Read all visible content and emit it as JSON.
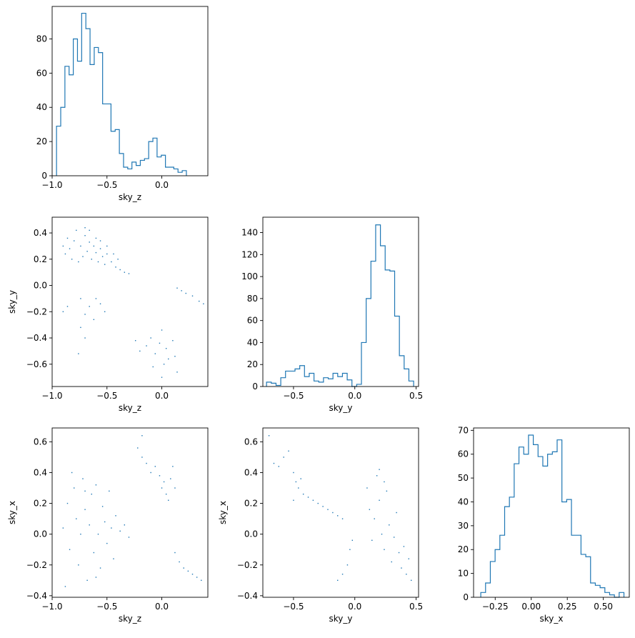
{
  "colors": {
    "series": "#1f77b4",
    "axis": "#000000",
    "background": "#ffffff"
  },
  "chart_data": [
    {
      "id": "hist_sky_z",
      "type": "histogram",
      "xlabel": "sky_z",
      "ylabel": "",
      "xlim": [
        -1.0,
        0.42
      ],
      "ylim": [
        0,
        99
      ],
      "xticks": [
        -1.0,
        -0.5,
        0.0
      ],
      "xtick_labels": [
        "−1.0",
        "−0.5",
        "0.0"
      ],
      "yticks": [
        0,
        20,
        40,
        60,
        80
      ],
      "ytick_labels": [
        "0",
        "20",
        "40",
        "60",
        "80"
      ],
      "bin_start": -0.96,
      "bin_width": 0.0382,
      "counts": [
        29,
        40,
        64,
        59,
        80,
        67,
        95,
        86,
        65,
        75,
        72,
        42,
        42,
        26,
        27,
        13,
        5,
        4,
        8,
        6,
        9,
        10,
        20,
        22,
        11,
        12,
        5,
        5,
        4,
        2,
        3
      ]
    },
    {
      "id": "scatter_z_y",
      "type": "scatter",
      "xlabel": "sky_z",
      "ylabel": "sky_y",
      "xlim": [
        -1.0,
        0.42
      ],
      "ylim": [
        -0.77,
        0.52
      ],
      "xticks": [
        -1.0,
        -0.5,
        0.0
      ],
      "xtick_labels": [
        "−1.0",
        "−0.5",
        "0.0"
      ],
      "yticks": [
        0.4,
        0.2,
        0.0,
        -0.2,
        -0.4,
        -0.6
      ],
      "ytick_labels": [
        "0.4",
        "0.2",
        "0.0",
        "−0.2",
        "−0.4",
        "−0.6"
      ],
      "points": [
        [
          -0.9,
          0.3
        ],
        [
          -0.86,
          0.36
        ],
        [
          -0.84,
          0.28
        ],
        [
          -0.8,
          0.34
        ],
        [
          -0.78,
          0.42
        ],
        [
          -0.74,
          0.3
        ],
        [
          -0.72,
          0.22
        ],
        [
          -0.7,
          0.38
        ],
        [
          -0.68,
          0.26
        ],
        [
          -0.66,
          0.33
        ],
        [
          -0.64,
          0.2
        ],
        [
          -0.62,
          0.3
        ],
        [
          -0.6,
          0.25
        ],
        [
          -0.58,
          0.18
        ],
        [
          -0.56,
          0.28
        ],
        [
          -0.54,
          0.22
        ],
        [
          -0.52,
          0.16
        ],
        [
          -0.5,
          0.24
        ],
        [
          -0.46,
          0.18
        ],
        [
          -0.42,
          0.14
        ],
        [
          -0.38,
          0.12
        ],
        [
          -0.34,
          0.1
        ],
        [
          -0.3,
          0.09
        ],
        [
          -0.88,
          0.24
        ],
        [
          -0.82,
          0.2
        ],
        [
          -0.76,
          0.18
        ],
        [
          -0.7,
          0.44
        ],
        [
          -0.66,
          0.42
        ],
        [
          -0.6,
          0.36
        ],
        [
          -0.56,
          0.34
        ],
        [
          -0.5,
          0.3
        ],
        [
          -0.44,
          0.24
        ],
        [
          -0.4,
          0.2
        ],
        [
          -0.9,
          -0.2
        ],
        [
          -0.86,
          -0.16
        ],
        [
          -0.74,
          -0.1
        ],
        [
          -0.7,
          -0.22
        ],
        [
          -0.66,
          -0.16
        ],
        [
          -0.6,
          -0.1
        ],
        [
          -0.56,
          -0.14
        ],
        [
          -0.52,
          -0.2
        ],
        [
          -0.62,
          -0.26
        ],
        [
          -0.74,
          -0.32
        ],
        [
          -0.7,
          -0.4
        ],
        [
          -0.76,
          -0.52
        ],
        [
          -0.24,
          -0.42
        ],
        [
          -0.2,
          -0.5
        ],
        [
          -0.14,
          -0.46
        ],
        [
          -0.1,
          -0.4
        ],
        [
          -0.06,
          -0.52
        ],
        [
          -0.02,
          -0.44
        ],
        [
          0.0,
          -0.34
        ],
        [
          0.02,
          -0.6
        ],
        [
          0.04,
          -0.48
        ],
        [
          0.06,
          -0.56
        ],
        [
          0.1,
          -0.42
        ],
        [
          0.12,
          -0.54
        ],
        [
          0.14,
          -0.66
        ],
        [
          -0.08,
          -0.62
        ],
        [
          0.0,
          -0.7
        ],
        [
          0.14,
          -0.02
        ],
        [
          0.18,
          -0.04
        ],
        [
          0.22,
          -0.06
        ],
        [
          0.28,
          -0.08
        ],
        [
          0.34,
          -0.12
        ],
        [
          0.38,
          -0.14
        ]
      ]
    },
    {
      "id": "hist_sky_y",
      "type": "histogram",
      "xlabel": "sky_y",
      "ylabel": "",
      "xlim": [
        -0.75,
        0.52
      ],
      "ylim": [
        0,
        154
      ],
      "xticks": [
        -0.5,
        0.0,
        0.5
      ],
      "xtick_labels": [
        "−0.5",
        "0.0",
        "0.5"
      ],
      "yticks": [
        0,
        20,
        40,
        60,
        80,
        100,
        120,
        140
      ],
      "ytick_labels": [
        "0",
        "20",
        "40",
        "60",
        "80",
        "100",
        "120",
        "140"
      ],
      "bin_start": -0.72,
      "bin_width": 0.0387,
      "counts": [
        4,
        3,
        1,
        8,
        14,
        14,
        16,
        19,
        9,
        12,
        5,
        4,
        8,
        7,
        12,
        9,
        12,
        6,
        0,
        2,
        40,
        80,
        114,
        147,
        128,
        106,
        105,
        64,
        28,
        16,
        5
      ]
    },
    {
      "id": "scatter_z_x",
      "type": "scatter",
      "xlabel": "sky_z",
      "ylabel": "sky_x",
      "xlim": [
        -1.0,
        0.42
      ],
      "ylim": [
        -0.41,
        0.69
      ],
      "xticks": [
        -1.0,
        -0.5,
        0.0
      ],
      "xtick_labels": [
        "−1.0",
        "−0.5",
        "0.0"
      ],
      "yticks": [
        0.6,
        0.4,
        0.2,
        0.0,
        -0.2,
        -0.4
      ],
      "ytick_labels": [
        "0.6",
        "0.4",
        "0.2",
        "0.0",
        "−0.2",
        "−0.4"
      ],
      "points": [
        [
          -0.9,
          0.04
        ],
        [
          -0.86,
          0.2
        ],
        [
          -0.84,
          -0.1
        ],
        [
          -0.8,
          0.3
        ],
        [
          -0.78,
          0.1
        ],
        [
          -0.76,
          -0.2
        ],
        [
          -0.74,
          0.0
        ],
        [
          -0.72,
          0.36
        ],
        [
          -0.7,
          0.16
        ],
        [
          -0.68,
          -0.3
        ],
        [
          -0.66,
          0.06
        ],
        [
          -0.64,
          0.26
        ],
        [
          -0.62,
          -0.12
        ],
        [
          -0.6,
          0.32
        ],
        [
          -0.58,
          0.0
        ],
        [
          -0.56,
          -0.22
        ],
        [
          -0.54,
          0.18
        ],
        [
          -0.52,
          0.08
        ],
        [
          -0.5,
          -0.06
        ],
        [
          -0.48,
          0.28
        ],
        [
          -0.46,
          0.04
        ],
        [
          -0.44,
          -0.16
        ],
        [
          -0.42,
          0.12
        ],
        [
          -0.38,
          0.02
        ],
        [
          -0.34,
          0.06
        ],
        [
          -0.3,
          -0.02
        ],
        [
          -0.82,
          0.4
        ],
        [
          -0.7,
          0.28
        ],
        [
          -0.6,
          -0.28
        ],
        [
          -0.88,
          -0.34
        ],
        [
          -0.22,
          0.56
        ],
        [
          -0.18,
          0.5
        ],
        [
          -0.14,
          0.46
        ],
        [
          -0.1,
          0.4
        ],
        [
          -0.06,
          0.44
        ],
        [
          -0.02,
          0.38
        ],
        [
          0.0,
          0.3
        ],
        [
          0.02,
          0.34
        ],
        [
          0.04,
          0.26
        ],
        [
          0.06,
          0.22
        ],
        [
          0.08,
          0.36
        ],
        [
          0.1,
          0.44
        ],
        [
          0.12,
          0.3
        ],
        [
          -0.18,
          0.64
        ],
        [
          0.12,
          -0.12
        ],
        [
          0.16,
          -0.18
        ],
        [
          0.2,
          -0.22
        ],
        [
          0.24,
          -0.24
        ],
        [
          0.28,
          -0.26
        ],
        [
          0.32,
          -0.28
        ],
        [
          0.36,
          -0.3
        ]
      ]
    },
    {
      "id": "scatter_y_x",
      "type": "scatter",
      "xlabel": "sky_y",
      "ylabel": "sky_x",
      "xlim": [
        -0.75,
        0.52
      ],
      "ylim": [
        -0.41,
        0.69
      ],
      "xticks": [
        -0.5,
        0.0,
        0.5
      ],
      "xtick_labels": [
        "−0.5",
        "0.0",
        "0.5"
      ],
      "yticks": [
        0.6,
        0.4,
        0.2,
        0.0,
        -0.2,
        -0.4
      ],
      "ytick_labels": [
        "0.6",
        "0.4",
        "0.2",
        "0.0",
        "−0.2",
        "−0.4"
      ],
      "points": [
        [
          -0.7,
          0.64
        ],
        [
          -0.66,
          0.46
        ],
        [
          -0.62,
          0.44
        ],
        [
          -0.58,
          0.5
        ],
        [
          -0.54,
          0.54
        ],
        [
          -0.5,
          0.4
        ],
        [
          -0.48,
          0.34
        ],
        [
          -0.46,
          0.3
        ],
        [
          -0.44,
          0.36
        ],
        [
          -0.42,
          0.26
        ],
        [
          -0.38,
          0.24
        ],
        [
          -0.34,
          0.22
        ],
        [
          -0.3,
          0.2
        ],
        [
          -0.26,
          0.18
        ],
        [
          -0.22,
          0.16
        ],
        [
          -0.18,
          0.14
        ],
        [
          -0.14,
          0.12
        ],
        [
          -0.1,
          0.1
        ],
        [
          -0.5,
          0.22
        ],
        [
          -0.14,
          -0.3
        ],
        [
          -0.1,
          -0.26
        ],
        [
          -0.06,
          -0.2
        ],
        [
          -0.04,
          -0.1
        ],
        [
          -0.02,
          -0.04
        ],
        [
          0.1,
          0.3
        ],
        [
          0.12,
          0.16
        ],
        [
          0.14,
          -0.04
        ],
        [
          0.16,
          0.1
        ],
        [
          0.18,
          0.38
        ],
        [
          0.2,
          0.22
        ],
        [
          0.22,
          0.0
        ],
        [
          0.24,
          -0.1
        ],
        [
          0.26,
          0.28
        ],
        [
          0.28,
          0.06
        ],
        [
          0.3,
          -0.18
        ],
        [
          0.32,
          -0.02
        ],
        [
          0.34,
          0.14
        ],
        [
          0.36,
          -0.12
        ],
        [
          0.38,
          -0.22
        ],
        [
          0.4,
          -0.08
        ],
        [
          0.42,
          -0.26
        ],
        [
          0.44,
          -0.16
        ],
        [
          0.2,
          0.42
        ],
        [
          0.24,
          0.34
        ],
        [
          0.46,
          -0.3
        ]
      ]
    },
    {
      "id": "hist_sky_x",
      "type": "histogram",
      "xlabel": "sky_x",
      "ylabel": "",
      "xlim": [
        -0.4,
        0.68
      ],
      "ylim": [
        0,
        71
      ],
      "xticks": [
        -0.25,
        0.0,
        0.25,
        0.5
      ],
      "xtick_labels": [
        "−0.25",
        "0.00",
        "0.25",
        "0.50"
      ],
      "yticks": [
        0,
        10,
        20,
        30,
        40,
        50,
        60,
        70
      ],
      "ytick_labels": [
        "0",
        "10",
        "20",
        "30",
        "40",
        "50",
        "60",
        "70"
      ],
      "bin_start": -0.35,
      "bin_width": 0.0331,
      "counts": [
        2,
        6,
        15,
        20,
        26,
        38,
        42,
        56,
        63,
        60,
        68,
        64,
        59,
        55,
        60,
        61,
        66,
        40,
        41,
        26,
        26,
        18,
        17,
        6,
        5,
        4,
        2,
        1,
        0,
        2
      ]
    }
  ]
}
